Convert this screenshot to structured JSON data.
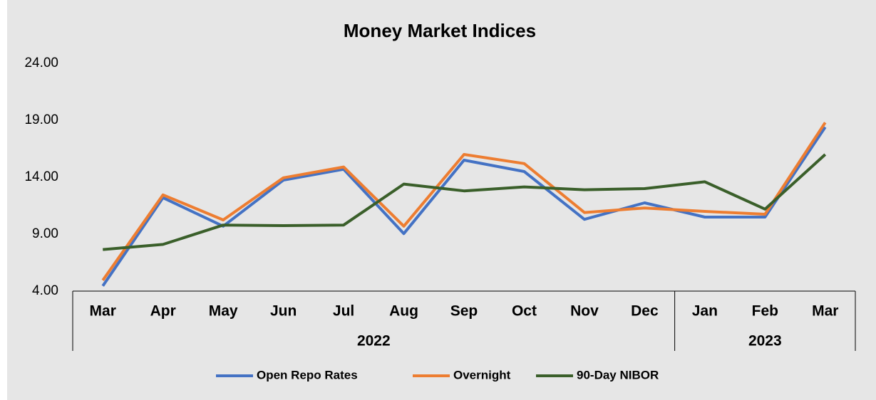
{
  "chart_data": {
    "type": "line",
    "title": "Money Market Indices",
    "category_groups": [
      {
        "name": "2022",
        "categories": [
          "Mar",
          "Apr",
          "May",
          "Jun",
          "Jul",
          "Aug",
          "Sep",
          "Oct",
          "Nov",
          "Dec"
        ]
      },
      {
        "name": "2023",
        "categories": [
          "Jan",
          "Feb",
          "Mar"
        ]
      }
    ],
    "series": [
      {
        "name": "Open Repo Rates",
        "color": "#4472c4",
        "values": [
          4.45,
          12.2,
          9.7,
          13.75,
          14.7,
          9.05,
          15.5,
          14.5,
          10.3,
          11.75,
          10.5,
          10.5,
          18.4
        ]
      },
      {
        "name": "Overnight",
        "color": "#ed7d31",
        "values": [
          4.95,
          12.45,
          10.25,
          13.95,
          14.9,
          9.7,
          16.0,
          15.2,
          10.9,
          11.3,
          11.0,
          10.75,
          18.8
        ]
      },
      {
        "name": "90-Day NIBOR",
        "color": "#3a5f2a",
        "values": [
          7.65,
          8.1,
          9.8,
          9.75,
          9.8,
          13.4,
          12.8,
          13.15,
          12.9,
          13.0,
          13.6,
          11.2,
          16.0
        ]
      }
    ],
    "ylim": [
      4,
      24
    ],
    "yticks": [
      {
        "value": 4,
        "label": "4.00"
      },
      {
        "value": 9,
        "label": "9.00"
      },
      {
        "value": 14,
        "label": "14.00"
      },
      {
        "value": 19,
        "label": "19.00"
      },
      {
        "value": 24,
        "label": "24.00"
      }
    ],
    "grid": false,
    "legend": "bottom"
  }
}
